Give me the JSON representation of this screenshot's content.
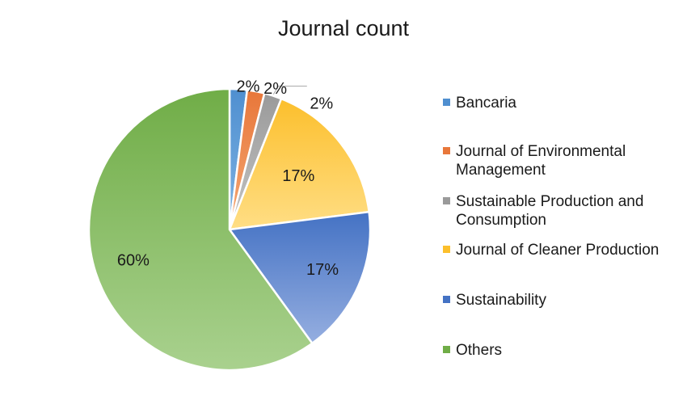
{
  "chart_data": {
    "type": "pie",
    "title": "Journal count",
    "slices": [
      {
        "name": "Bancaria",
        "value": 2,
        "label": "2%",
        "color_light": "#7fb4e3",
        "color_dark": "#4f8fd0"
      },
      {
        "name": "Journal of Environmental Management",
        "value": 2,
        "label": "2%",
        "color_light": "#f4a774",
        "color_dark": "#e8773a"
      },
      {
        "name": "Sustainable Production and Consumption",
        "value": 2,
        "label": "2%",
        "color_light": "#c4c4c4",
        "color_dark": "#9a9a9a"
      },
      {
        "name": "Journal of Cleaner Production",
        "value": 17,
        "label": "17%",
        "color_light": "#ffde85",
        "color_dark": "#fcbf2c"
      },
      {
        "name": "Sustainability",
        "value": 17,
        "label": "17%",
        "color_light": "#95aee0",
        "color_dark": "#4472c4"
      },
      {
        "name": "Others",
        "value": 60,
        "label": "60%",
        "color_light": "#a9d18e",
        "color_dark": "#70ad47"
      }
    ],
    "legend_position": "right"
  }
}
